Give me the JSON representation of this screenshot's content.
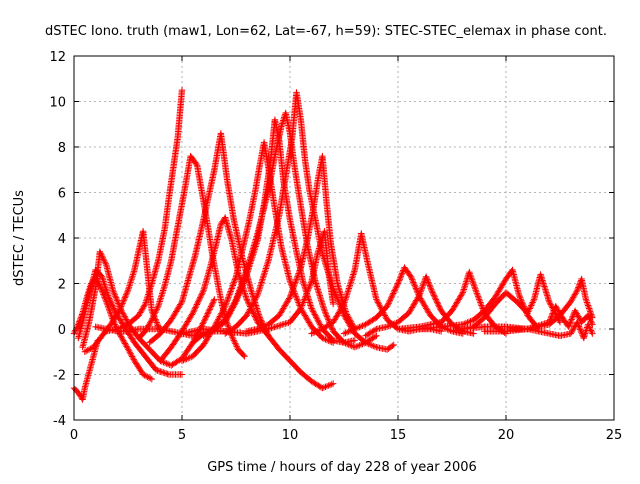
{
  "chart_data": {
    "type": "scatter",
    "title": "dSTEC Iono. truth (maw1, Lon=62, Lat=-67, h=59): STEC-STEC_elemax in phase cont.",
    "xlabel": "GPS time / hours of day 228 of year 2006",
    "ylabel": "dSTEC  / TECUs",
    "xlim": [
      0,
      25
    ],
    "ylim": [
      -4,
      12
    ],
    "x_ticks": [
      0,
      5,
      10,
      15,
      20,
      25
    ],
    "x_tick_labels": [
      "0",
      "5",
      "10",
      "15",
      "20",
      "25"
    ],
    "y_ticks": [
      -4,
      -2,
      0,
      2,
      4,
      6,
      8,
      10,
      12
    ],
    "y_tick_labels": [
      "-4",
      "-2",
      "0",
      "2",
      "4",
      "6",
      "8",
      "10",
      "12"
    ],
    "grid": true,
    "legend": "none",
    "marker": "+",
    "color": "#ff0000",
    "series": [
      {
        "x": [
          0.0,
          0.2,
          0.4,
          0.5,
          0.7,
          0.9,
          1.1
        ],
        "y": [
          -2.6,
          -2.8,
          -3.1,
          -2.6,
          -1.9,
          -1.2,
          -0.5
        ]
      },
      {
        "x": [
          0.0,
          0.2,
          0.4,
          0.6,
          0.8,
          1.0,
          1.2,
          1.5,
          1.8,
          2.1,
          2.4,
          2.8,
          3.2,
          3.6
        ],
        "y": [
          -0.2,
          0.2,
          0.7,
          1.4,
          2.0,
          2.3,
          1.9,
          1.2,
          0.4,
          -0.2,
          -0.7,
          -1.4,
          -2.0,
          -2.2
        ]
      },
      {
        "x": [
          0.2,
          0.4,
          0.7,
          1.0,
          1.3,
          1.6,
          2.0,
          2.4,
          2.8,
          3.3,
          3.8,
          4.4,
          5.0
        ],
        "y": [
          -0.4,
          0.3,
          1.5,
          2.6,
          2.3,
          1.4,
          0.6,
          0.0,
          -0.6,
          -1.2,
          -1.8,
          -2.0,
          -2.0
        ]
      },
      {
        "x": [
          0.4,
          0.7,
          1.0,
          1.2,
          1.5,
          1.8,
          2.2,
          2.6,
          3.0,
          3.5,
          4.0,
          4.5,
          5.0,
          5.5,
          6.0,
          6.5
        ],
        "y": [
          -0.8,
          0.3,
          1.8,
          3.4,
          2.8,
          1.7,
          0.8,
          0.1,
          -0.4,
          -0.9,
          -1.4,
          -1.6,
          -1.3,
          -0.6,
          0.3,
          1.3
        ]
      },
      {
        "x": [
          0.5,
          0.9,
          1.3,
          1.7,
          2.1,
          2.5,
          2.8,
          3.2,
          3.6,
          4.0
        ],
        "y": [
          -1.0,
          -0.8,
          -0.3,
          0.2,
          0.8,
          1.7,
          2.6,
          4.3,
          0.8,
          -0.1
        ]
      },
      {
        "x": [
          1.0,
          1.5,
          2.0,
          2.5,
          3.0,
          3.5,
          4.0,
          4.5,
          5.0,
          5.5,
          6.0,
          6.5,
          7.0
        ],
        "y": [
          0.1,
          0.0,
          -0.1,
          -0.1,
          0.0,
          0.0,
          0.0,
          -0.1,
          -0.2,
          -0.3,
          -0.2,
          -0.1,
          -0.1
        ]
      },
      {
        "x": [
          1.5,
          2.0,
          2.5,
          3.0,
          3.3,
          3.6,
          3.9,
          4.2,
          4.4,
          4.6,
          4.8,
          5.0
        ],
        "y": [
          -0.1,
          0.0,
          0.2,
          0.6,
          1.1,
          2.0,
          3.0,
          4.4,
          5.8,
          7.1,
          8.4,
          10.5
        ]
      },
      {
        "x": [
          3.0,
          3.3,
          3.6,
          3.9,
          4.2,
          4.5,
          4.8,
          5.1,
          5.4,
          5.7,
          6.0,
          6.2,
          6.4,
          6.6,
          6.8,
          7.0,
          7.3,
          7.6,
          7.9
        ],
        "y": [
          -0.4,
          -0.1,
          0.4,
          1.0,
          1.9,
          3.0,
          4.5,
          6.0,
          7.6,
          7.2,
          5.6,
          4.5,
          3.3,
          2.3,
          1.3,
          0.5,
          -0.3,
          -0.9,
          -1.2
        ]
      },
      {
        "x": [
          3.5,
          4.0,
          4.5,
          5.0,
          5.3,
          5.6,
          5.9,
          6.2,
          6.5,
          6.8,
          7.1,
          7.4,
          7.8,
          8.2,
          8.6,
          9.0,
          9.5,
          10.0,
          10.5,
          11.0,
          11.5,
          12.0
        ],
        "y": [
          -0.6,
          -0.2,
          0.4,
          1.2,
          2.2,
          3.2,
          4.4,
          5.7,
          7.0,
          8.6,
          6.5,
          4.8,
          3.1,
          1.7,
          0.5,
          -0.3,
          -0.9,
          -1.4,
          -1.9,
          -2.3,
          -2.6,
          -2.4
        ]
      },
      {
        "x": [
          4.0,
          4.5,
          5.0,
          5.5,
          6.0,
          6.3,
          6.6,
          6.8,
          7.0,
          7.3,
          7.6,
          8.0,
          8.5,
          9.0
        ],
        "y": [
          -1.4,
          -0.8,
          -0.1,
          0.7,
          1.7,
          2.7,
          3.8,
          4.6,
          4.9,
          3.9,
          2.5,
          1.3,
          0.3,
          -0.3
        ]
      },
      {
        "x": [
          5.0,
          5.5,
          6.0,
          6.5,
          7.0,
          7.5,
          7.8,
          8.1,
          8.4,
          8.6,
          8.8,
          9.0,
          9.3,
          9.6,
          10.0,
          10.5,
          11.0,
          11.5,
          12.0
        ],
        "y": [
          -1.4,
          -1.2,
          -0.7,
          0.1,
          1.0,
          2.3,
          3.5,
          4.7,
          6.1,
          7.2,
          8.2,
          7.1,
          5.3,
          3.6,
          2.1,
          0.9,
          0.1,
          -0.4,
          -0.6
        ]
      },
      {
        "x": [
          5.5,
          6.0,
          6.5,
          7.0,
          7.5,
          8.0,
          8.5,
          8.8,
          9.1,
          9.3,
          9.5,
          9.7,
          10.0,
          10.3,
          10.6,
          11.0,
          11.5,
          12.0,
          12.5,
          13.0
        ],
        "y": [
          -0.6,
          -0.2,
          0.0,
          0.3,
          1.2,
          2.4,
          3.9,
          5.5,
          7.4,
          9.2,
          8.3,
          6.5,
          4.8,
          3.4,
          2.1,
          0.9,
          0.0,
          -0.5,
          -0.6,
          -0.5
        ]
      },
      {
        "x": [
          6.0,
          6.5,
          7.0,
          7.5,
          8.0,
          8.5,
          9.0,
          9.3,
          9.6,
          9.8,
          10.0,
          10.2,
          10.5,
          10.8,
          11.2,
          11.6,
          12.0,
          12.5,
          13.0,
          13.5,
          14.0
        ],
        "y": [
          -0.3,
          0.0,
          0.4,
          1.3,
          2.6,
          4.2,
          6.1,
          7.6,
          8.9,
          9.5,
          8.6,
          7.2,
          5.4,
          3.7,
          2.0,
          0.8,
          -0.1,
          -0.6,
          -0.8,
          -0.6,
          -0.3
        ]
      },
      {
        "x": [
          7.0,
          7.5,
          8.0,
          8.5,
          9.0,
          9.5,
          9.8,
          10.1,
          10.3,
          10.5,
          10.7,
          10.9,
          11.2,
          11.5,
          12.0,
          12.5,
          13.0,
          13.5,
          14.0,
          14.5,
          14.8
        ],
        "y": [
          -0.2,
          0.1,
          0.6,
          1.5,
          3.0,
          5.0,
          6.7,
          8.4,
          10.4,
          9.2,
          7.4,
          6.1,
          4.7,
          3.3,
          1.8,
          0.6,
          -0.2,
          -0.6,
          -0.8,
          -0.9,
          -0.7
        ]
      },
      {
        "x": [
          8.0,
          8.5,
          9.0,
          9.5,
          10.0,
          10.5,
          10.8,
          11.1,
          11.3,
          11.5,
          11.7,
          11.9,
          12.2,
          12.6,
          13.0
        ],
        "y": [
          -0.1,
          0.0,
          0.2,
          0.6,
          1.4,
          2.7,
          3.9,
          5.4,
          6.6,
          7.6,
          5.5,
          3.7,
          2.0,
          0.7,
          0.0
        ]
      },
      {
        "x": [
          5.0,
          6.0,
          7.0,
          8.0,
          9.0,
          10.0,
          10.5,
          11.0,
          11.3,
          11.6,
          11.8,
          12.0
        ],
        "y": [
          -0.2,
          0.0,
          -0.1,
          -0.2,
          0.0,
          0.3,
          0.9,
          2.1,
          3.4,
          4.3,
          2.4,
          1.1
        ]
      },
      {
        "x": [
          11.0,
          11.5,
          12.0,
          12.5,
          13.0,
          13.3,
          13.6,
          14.0,
          14.5,
          15.0,
          15.5,
          16.0,
          16.5,
          17.0
        ],
        "y": [
          -0.2,
          0.0,
          0.3,
          1.1,
          2.6,
          4.2,
          2.9,
          1.3,
          0.4,
          0.0,
          -0.1,
          0.0,
          0.0,
          -0.1
        ]
      },
      {
        "x": [
          12.5,
          13.0,
          13.5,
          14.0,
          14.5,
          15.0,
          15.3,
          15.6,
          16.0,
          16.5,
          17.0,
          17.5,
          18.0
        ],
        "y": [
          -0.2,
          0.0,
          0.2,
          0.5,
          1.0,
          2.0,
          2.7,
          2.3,
          1.4,
          0.6,
          0.1,
          -0.1,
          -0.2
        ]
      },
      {
        "x": [
          13.5,
          14.0,
          14.5,
          15.0,
          15.5,
          16.0,
          16.3,
          16.6,
          17.0,
          17.5,
          18.0,
          18.5
        ],
        "y": [
          -0.3,
          0.0,
          0.1,
          0.3,
          0.7,
          1.5,
          2.3,
          1.6,
          0.8,
          0.2,
          -0.1,
          -0.2
        ]
      },
      {
        "x": [
          15.0,
          16.0,
          17.0,
          17.5,
          18.0,
          18.3,
          18.6,
          19.0,
          19.5,
          20.0
        ],
        "y": [
          0.0,
          0.1,
          0.3,
          0.8,
          1.6,
          2.5,
          1.7,
          0.7,
          0.1,
          -0.2
        ]
      },
      {
        "x": [
          16.0,
          17.0,
          18.0,
          18.5,
          19.0,
          19.5,
          20.0,
          20.3,
          20.6,
          21.0,
          21.5
        ],
        "y": [
          0.0,
          0.1,
          0.2,
          0.4,
          0.8,
          1.4,
          2.2,
          2.6,
          1.5,
          0.6,
          0.0
        ]
      },
      {
        "x": [
          17.5,
          18.5,
          19.0,
          19.5,
          20.0,
          20.5,
          21.0,
          21.3,
          21.6,
          22.0,
          22.5
        ],
        "y": [
          -0.1,
          0.1,
          0.5,
          1.1,
          1.6,
          1.2,
          0.7,
          1.3,
          2.4,
          1.2,
          0.3
        ]
      },
      {
        "x": [
          18.0,
          19.0,
          20.0,
          21.0,
          22.0,
          22.5,
          23.0,
          23.3,
          23.5,
          23.7,
          24.0
        ],
        "y": [
          0.0,
          0.1,
          0.1,
          0.0,
          0.2,
          0.6,
          1.2,
          1.7,
          2.2,
          1.3,
          0.5
        ]
      },
      {
        "x": [
          19.0,
          20.0,
          21.0,
          22.0,
          22.3,
          22.6,
          22.9,
          23.2,
          23.5,
          23.8,
          24.0
        ],
        "y": [
          -0.1,
          -0.1,
          0.0,
          0.3,
          1.0,
          0.5,
          0.1,
          0.8,
          0.3,
          0.6,
          0.2
        ]
      },
      {
        "x": [
          20.0,
          21.0,
          21.5,
          22.0,
          22.5,
          23.0,
          23.3,
          23.6,
          23.8,
          24.0
        ],
        "y": [
          0.0,
          0.0,
          -0.1,
          -0.2,
          -0.3,
          -0.2,
          0.3,
          -0.4,
          0.2,
          -0.2
        ]
      }
    ]
  }
}
